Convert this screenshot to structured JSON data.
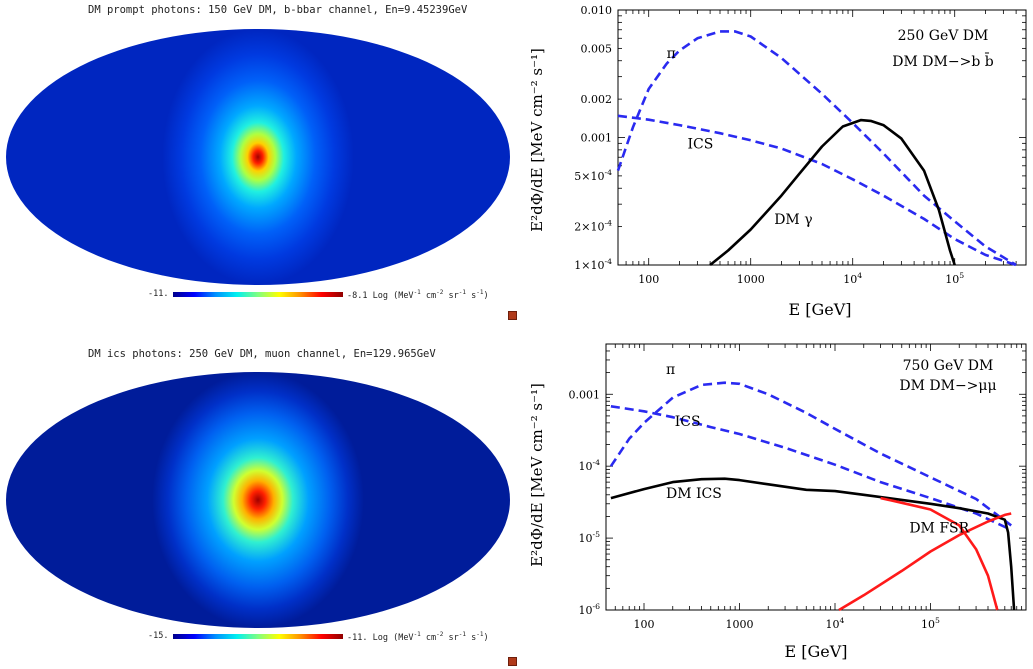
{
  "maps": [
    {
      "title": "DM prompt photons: 150 GeV DM, b-bbar channel, En=9.45239GeV",
      "cbar_min": "-11.",
      "cbar_max": "-8.1",
      "cbar_units_prefix": "Log (MeV",
      "cbar_units_sup1": "-1",
      "cbar_units_mid1": " cm",
      "cbar_units_sup2": "-2",
      "cbar_units_mid2": " sr",
      "cbar_units_sup3": "-1",
      "cbar_units_mid3": " s",
      "cbar_units_sup4": "-1",
      "cbar_units_suffix": ")"
    },
    {
      "title": "DM ics photons: 250 GeV DM, muon channel, En=129.965GeV",
      "cbar_min": "-15.",
      "cbar_max": "-11.",
      "cbar_units_prefix": "Log (MeV",
      "cbar_units_sup1": "-1",
      "cbar_units_mid1": " cm",
      "cbar_units_sup2": "-2",
      "cbar_units_mid2": " sr",
      "cbar_units_sup3": "-1",
      "cbar_units_mid3": " s",
      "cbar_units_sup4": "-1",
      "cbar_units_suffix": ")"
    }
  ],
  "colors": {
    "blue_dash": "#2a2af0",
    "black": "#000000",
    "red": "#ff1a1a",
    "icon": "#b03a1a"
  },
  "chart_data": [
    {
      "type": "line",
      "xscale": "log",
      "yscale": "log",
      "xlim": [
        50,
        500000
      ],
      "ylim": [
        0.0001,
        0.01
      ],
      "xlabel": "E [GeV]",
      "ylabel": "E²dΦ/dE [MeV cm⁻² s⁻¹]",
      "x_ticks": [
        {
          "v": 100,
          "b": "100",
          "e": ""
        },
        {
          "v": 1000,
          "b": "1000",
          "e": ""
        },
        {
          "v": 10000,
          "b": "10",
          "e": "4"
        },
        {
          "v": 100000,
          "b": "10",
          "e": "5"
        }
      ],
      "y_ticks": [
        {
          "v": 0.0001,
          "b": "1×10",
          "e": "-4"
        },
        {
          "v": 0.0002,
          "b": "2×10",
          "e": "-4"
        },
        {
          "v": 0.0005,
          "b": "5×10",
          "e": "-4"
        },
        {
          "v": 0.001,
          "b": "0.001",
          "e": ""
        },
        {
          "v": 0.002,
          "b": "0.002",
          "e": ""
        },
        {
          "v": 0.005,
          "b": "0.005",
          "e": ""
        },
        {
          "v": 0.01,
          "b": "0.010",
          "e": ""
        }
      ],
      "annotation_lines": [
        "250 GeV DM",
        "DM DM−>b b̄"
      ],
      "series": [
        {
          "name": "π",
          "style": "dashed",
          "color": "#2a2af0",
          "x": [
            50,
            70,
            100,
            150,
            200,
            300,
            500,
            700,
            1000,
            2000,
            5000,
            10000,
            20000,
            50000,
            100000,
            200000,
            400000
          ],
          "y": [
            0.00055,
            0.0012,
            0.0024,
            0.0038,
            0.0048,
            0.006,
            0.0068,
            0.0068,
            0.0062,
            0.0042,
            0.0022,
            0.0013,
            0.00075,
            0.00035,
            0.00022,
            0.00014,
            0.0001
          ]
        },
        {
          "name": "ICS",
          "style": "dashed",
          "color": "#2a2af0",
          "x": [
            50,
            100,
            200,
            500,
            1000,
            2000,
            5000,
            10000,
            20000,
            50000,
            100000,
            200000,
            400000
          ],
          "y": [
            0.00148,
            0.00138,
            0.00125,
            0.00108,
            0.00095,
            0.00082,
            0.00062,
            0.00047,
            0.00035,
            0.00023,
            0.00016,
            0.00012,
            0.0001
          ]
        },
        {
          "name": "DM γ",
          "style": "solid",
          "color": "#000000",
          "x": [
            400,
            600,
            1000,
            2000,
            3000,
            5000,
            8000,
            12000,
            15000,
            20000,
            30000,
            50000,
            70000,
            90000,
            100000
          ],
          "y": [
            0.0001,
            0.00013,
            0.00019,
            0.00035,
            0.00052,
            0.00085,
            0.00122,
            0.00137,
            0.00135,
            0.00125,
            0.00098,
            0.00055,
            0.00027,
            0.00013,
            0.0001
          ]
        }
      ],
      "labels": [
        {
          "text": "π",
          "x": 150,
          "y": 0.0042
        },
        {
          "text": "ICS",
          "x": 240,
          "y": 0.00082
        },
        {
          "text": "DM γ",
          "x": 1700,
          "y": 0.00021
        }
      ]
    },
    {
      "type": "line",
      "xscale": "log",
      "yscale": "log",
      "xlim": [
        40,
        1000000
      ],
      "ylim": [
        1e-06,
        0.005
      ],
      "xlabel": "E [GeV]",
      "ylabel": "E²dΦ/dE [MeV cm⁻² s⁻¹]",
      "x_ticks": [
        {
          "v": 100,
          "b": "100",
          "e": ""
        },
        {
          "v": 1000,
          "b": "1000",
          "e": ""
        },
        {
          "v": 10000,
          "b": "10",
          "e": "4"
        },
        {
          "v": 100000,
          "b": "10",
          "e": "5"
        }
      ],
      "y_ticks": [
        {
          "v": 1e-06,
          "b": "10",
          "e": "-6"
        },
        {
          "v": 1e-05,
          "b": "10",
          "e": "-5"
        },
        {
          "v": 0.0001,
          "b": "10",
          "e": "-4"
        },
        {
          "v": 0.001,
          "b": "0.001",
          "e": ""
        }
      ],
      "annotation_lines": [
        "750 GeV DM",
        "DM DM−>μμ"
      ],
      "series": [
        {
          "name": "π",
          "style": "dashed",
          "color": "#2a2af0",
          "x": [
            45,
            70,
            100,
            200,
            400,
            700,
            1000,
            2000,
            5000,
            10000,
            30000,
            100000,
            300000,
            700000
          ],
          "y": [
            0.0001,
            0.00024,
            0.0004,
            0.0009,
            0.00135,
            0.00145,
            0.0014,
            0.001,
            0.00055,
            0.00033,
            0.00015,
            7e-05,
            3.5e-05,
            1.5e-05
          ]
        },
        {
          "name": "ICS",
          "style": "dashed",
          "color": "#2a2af0",
          "x": [
            45,
            100,
            200,
            500,
            1000,
            3000,
            10000,
            30000,
            100000,
            300000,
            700000
          ],
          "y": [
            0.00068,
            0.00058,
            0.00048,
            0.00035,
            0.00028,
            0.00018,
            0.000105,
            6e-05,
            3.6e-05,
            2.2e-05,
            1.3e-05
          ]
        },
        {
          "name": "DM ICS",
          "style": "solid",
          "color": "#000000",
          "x": [
            45,
            100,
            200,
            400,
            700,
            1000,
            2000,
            5000,
            10000,
            20000,
            50000,
            100000,
            200000,
            400000,
            600000,
            650000,
            700000,
            750000
          ],
          "y": [
            3.6e-05,
            4.8e-05,
            6e-05,
            6.6e-05,
            6.7e-05,
            6.4e-05,
            5.6e-05,
            4.7e-05,
            4.5e-05,
            4e-05,
            3.4e-05,
            3e-05,
            2.6e-05,
            2.2e-05,
            1.8e-05,
            1.2e-05,
            4e-06,
            1e-06
          ]
        },
        {
          "name": "DM FSR",
          "style": "solid",
          "color": "#ff1a1a",
          "x": [
            11000,
            20000,
            50000,
            100000,
            200000,
            400000,
            600000,
            700000
          ],
          "y": [
            1e-06,
            1.6e-06,
            3.5e-06,
            6.5e-06,
            1.1e-05,
            1.7e-05,
            2.1e-05,
            2.2e-05
          ]
        },
        {
          "name": "DM ICS (red)",
          "style": "solid",
          "color": "#ff1a1a",
          "x": [
            30000,
            50000,
            100000,
            200000,
            300000,
            400000,
            500000
          ],
          "y": [
            3.6e-05,
            3.1e-05,
            2.5e-05,
            1.5e-05,
            7e-06,
            3e-06,
            1e-06
          ]
        }
      ],
      "labels": [
        {
          "text": "π",
          "x": 170,
          "y": 0.0019
        },
        {
          "text": "ICS",
          "x": 210,
          "y": 0.00036
        },
        {
          "text": "DM ICS",
          "x": 170,
          "y": 3.6e-05
        },
        {
          "text": "DM FSR",
          "x": 60000,
          "y": 1.2e-05
        }
      ]
    }
  ]
}
